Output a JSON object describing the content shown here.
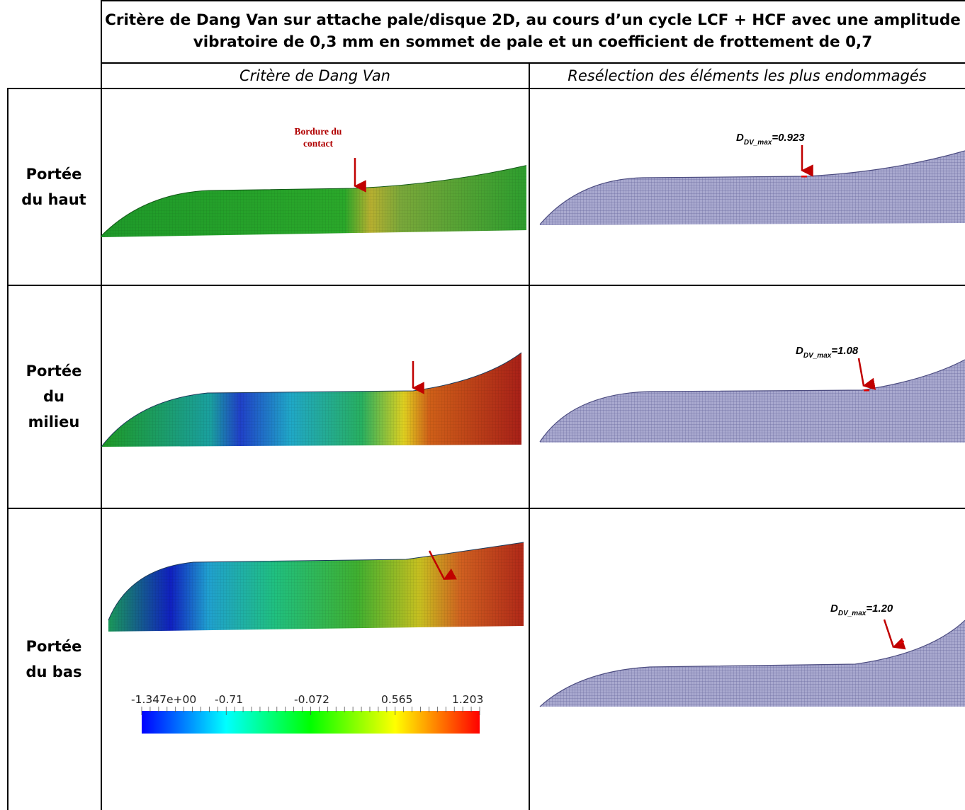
{
  "table": {
    "title_line1": "Critère de Dang Van sur attache pale/disque 2D, au cours d’un cycle LCF + HCF avec une amplitude",
    "title_line2": "vibratoire de 0,3 mm en sommet de pale et un coefficient de frottement de 0,7",
    "col1_header": "Critère de Dang Van",
    "col2_header": "Resélection des éléments les plus endommagés"
  },
  "rows": [
    {
      "label_lines": [
        "Portée",
        "du haut"
      ],
      "annotation_lines": [
        "Bordure du",
        "contact"
      ],
      "dmax_symbol": "D",
      "dmax_sub": "DV_max",
      "dmax_value": "=0.923"
    },
    {
      "label_lines": [
        "Portée",
        "du",
        "milieu"
      ],
      "dmax_symbol": "D",
      "dmax_sub": "DV_max",
      "dmax_value": "=1.08"
    },
    {
      "label_lines": [
        "Portée",
        "du bas"
      ],
      "dmax_symbol": "D",
      "dmax_sub": "DV_max",
      "dmax_value": "=1.20"
    }
  ],
  "colorbar": {
    "ticks": [
      "-1.347e+00",
      "-0.71",
      "-0.072",
      "0.565",
      "1.203"
    ],
    "colors": [
      "#0000ff",
      "#00ffff",
      "#00ff00",
      "#ffff00",
      "#ff0000"
    ]
  },
  "colors": {
    "arrow": "#c00000",
    "mesh_fill": "#a9a9cf",
    "mesh_line": "#6b6ba0"
  }
}
